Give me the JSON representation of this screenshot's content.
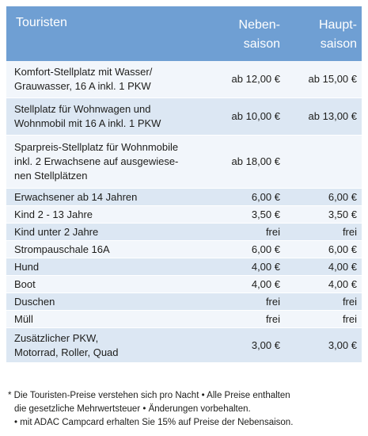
{
  "header": {
    "col1": "Touristen",
    "col2_l1": "Neben-",
    "col2_l2": "saison",
    "col3_l1": "Haupt-",
    "col3_l2": "saison"
  },
  "rows": [
    {
      "label_l1": "Komfort-Stellplatz mit Wasser/",
      "label_l2": "Grauwasser, 16 A inkl. 1 PKW",
      "label_l3": "",
      "neben": "ab 12,00 €",
      "haupt": "ab 15,00 €"
    },
    {
      "label_l1": "Stellplatz für Wohnwagen und",
      "label_l2": "Wohnmobil mit 16 A inkl. 1 PKW",
      "label_l3": "",
      "neben": "ab 10,00 €",
      "haupt": "ab 13,00 €"
    },
    {
      "label_l1": "Sparpreis-Stellplatz für Wohnmobile",
      "label_l2": "inkl. 2 Erwachsene auf ausgewiese-",
      "label_l3": "nen Stellplätzen",
      "neben": "ab 18,00 €",
      "haupt": ""
    },
    {
      "label_l1": "Erwachsener ab 14 Jahren",
      "label_l2": "",
      "label_l3": "",
      "neben": "6,00 €",
      "haupt": "6,00 €"
    },
    {
      "label_l1": "Kind 2 - 13 Jahre",
      "label_l2": "",
      "label_l3": "",
      "neben": "3,50 €",
      "haupt": "3,50 €"
    },
    {
      "label_l1": "Kind unter 2 Jahre",
      "label_l2": "",
      "label_l3": "",
      "neben": "frei",
      "haupt": "frei"
    },
    {
      "label_l1": "Strompauschale 16A",
      "label_l2": "",
      "label_l3": "",
      "neben": "6,00 €",
      "haupt": "6,00 €"
    },
    {
      "label_l1": "Hund",
      "label_l2": "",
      "label_l3": "",
      "neben": "4,00 €",
      "haupt": "4,00 €"
    },
    {
      "label_l1": "Boot",
      "label_l2": "",
      "label_l3": "",
      "neben": "4,00 €",
      "haupt": "4,00 €"
    },
    {
      "label_l1": "Duschen",
      "label_l2": "",
      "label_l3": "",
      "neben": "frei",
      "haupt": "frei"
    },
    {
      "label_l1": "Müll",
      "label_l2": "",
      "label_l3": "",
      "neben": "frei",
      "haupt": "frei"
    },
    {
      "label_l1": "Zusätzlicher PKW,",
      "label_l2": "Motorrad, Roller, Quad",
      "label_l3": "",
      "neben": "3,00 €",
      "haupt": "3,00 €"
    }
  ],
  "footnote": {
    "line1": "* Die Touristen-Preise verstehen sich pro Nacht • Alle Preise enthalten",
    "line2": "die gesetzliche Mehrwertsteuer • Änderungen vorbehalten.",
    "line3": "• mit ADAC Campcard erhalten Sie 15% auf Preise der Nebensaison."
  },
  "colors": {
    "header_bg": "#6f9fd3",
    "row_light": "#f2f6fb",
    "row_dark": "#dce7f3"
  }
}
